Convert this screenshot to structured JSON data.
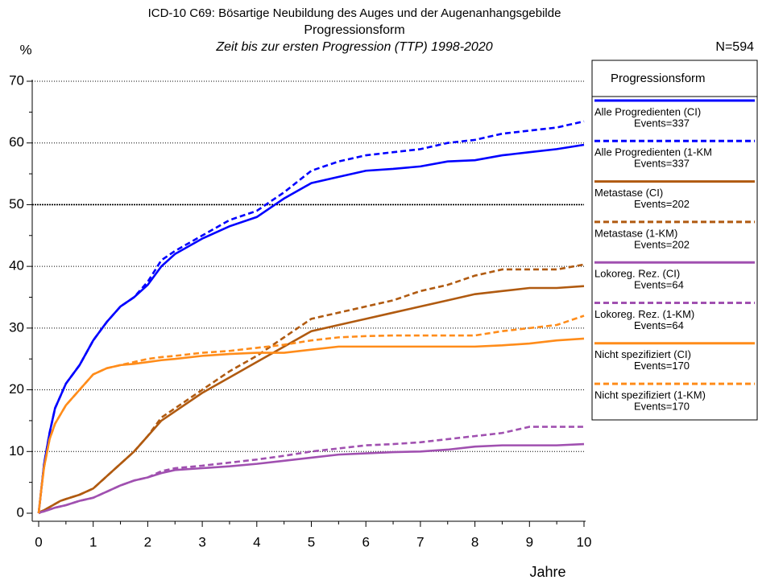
{
  "chart_data": {
    "type": "line",
    "title": "ICD-10 C69: Bösartige Neubildung des Auges und der Augenanhangsgebilde",
    "subtitle": "Progressionsform",
    "subtitle2": "Zeit bis zur ersten Progression (TTP) 1998-2020",
    "y_label": "%",
    "x_label": "Jahre",
    "annotation": "N=594",
    "legend_title": "Progressionsform",
    "grid": true,
    "xlim": [
      0,
      10
    ],
    "xticks": [
      0,
      1,
      2,
      3,
      4,
      5,
      6,
      7,
      8,
      9,
      10
    ],
    "ylim": [
      0,
      70
    ],
    "yticks": [
      0,
      10,
      20,
      30,
      40,
      50,
      60,
      70
    ],
    "x": [
      0,
      0.05,
      0.1,
      0.2,
      0.3,
      0.4,
      0.5,
      0.75,
      1,
      1.25,
      1.5,
      1.75,
      2,
      2.25,
      2.5,
      3,
      3.5,
      4,
      4.5,
      5,
      5.5,
      6,
      6.5,
      7,
      7.5,
      8,
      8.5,
      9,
      9.5,
      10
    ],
    "series": [
      {
        "name": "Alle Progredienten (CI)",
        "events": "Events=337",
        "color": "#0000ff",
        "dashed": false,
        "values": [
          0,
          4,
          8,
          13,
          17,
          19,
          21,
          24,
          28,
          31,
          33.5,
          35,
          37,
          40,
          42,
          44.5,
          46.5,
          48,
          51,
          53.5,
          54.5,
          55.5,
          55.8,
          56.2,
          57,
          57.2,
          58,
          58.5,
          59,
          59.7
        ]
      },
      {
        "name": "Alle Progredienten (1-KM",
        "events": "Events=337",
        "color": "#0000ff",
        "dashed": true,
        "values": [
          0,
          4,
          8,
          13,
          17,
          19,
          21,
          24,
          28,
          31,
          33.5,
          35,
          37.5,
          41,
          42.5,
          45,
          47.5,
          49,
          52,
          55.5,
          57,
          58,
          58.5,
          59,
          60,
          60.5,
          61.5,
          62,
          62.5,
          63.5
        ]
      },
      {
        "name": "Metastase (CI)",
        "events": "Events=202",
        "color": "#b05a10",
        "dashed": false,
        "values": [
          0,
          0.3,
          0.5,
          1,
          1.5,
          2,
          2.3,
          3,
          4,
          6,
          8,
          10,
          12.5,
          15,
          16.5,
          19.5,
          22,
          24.5,
          27,
          29.5,
          30.5,
          31.5,
          32.5,
          33.5,
          34.5,
          35.5,
          36,
          36.5,
          36.5,
          36.8
        ]
      },
      {
        "name": "Metastase (1-KM)",
        "events": "Events=202",
        "color": "#b05a10",
        "dashed": true,
        "values": [
          0,
          0.3,
          0.5,
          1,
          1.5,
          2,
          2.3,
          3,
          4,
          6,
          8,
          10,
          12.5,
          15.5,
          17,
          20,
          23,
          25.5,
          28.5,
          31.5,
          32.5,
          33.5,
          34.5,
          36,
          37,
          38.5,
          39.5,
          39.5,
          39.5,
          40.3
        ]
      },
      {
        "name": "Lokoreg. Rez. (CI)",
        "events": "Events=64",
        "color": "#a050b0",
        "dashed": false,
        "values": [
          0,
          0.2,
          0.3,
          0.6,
          0.9,
          1.1,
          1.3,
          2,
          2.5,
          3.5,
          4.5,
          5.3,
          5.8,
          6.5,
          7,
          7.3,
          7.6,
          8,
          8.5,
          9,
          9.5,
          9.7,
          9.9,
          10,
          10.3,
          10.8,
          11,
          11,
          11,
          11.2
        ]
      },
      {
        "name": "Lokoreg. Rez. (1-KM)",
        "events": "Events=64",
        "color": "#a050b0",
        "dashed": true,
        "values": [
          0,
          0.2,
          0.3,
          0.6,
          0.9,
          1.1,
          1.3,
          2,
          2.5,
          3.5,
          4.5,
          5.3,
          5.8,
          6.8,
          7.3,
          7.7,
          8.2,
          8.7,
          9.3,
          10,
          10.5,
          11,
          11.2,
          11.5,
          12,
          12.5,
          13,
          14,
          14,
          14
        ]
      },
      {
        "name": "Nicht spezifiziert (CI)",
        "events": "Events=170",
        "color": "#ff8c1a",
        "dashed": false,
        "values": [
          0,
          4,
          7.5,
          12,
          14.5,
          16,
          17.5,
          20,
          22.5,
          23.5,
          24,
          24.2,
          24.5,
          24.8,
          25,
          25.5,
          25.8,
          26,
          26,
          26.5,
          27,
          27,
          27,
          27,
          27,
          27,
          27.2,
          27.5,
          28,
          28.3
        ]
      },
      {
        "name": "Nicht spezifiziert (1-KM)",
        "events": "Events=170",
        "color": "#ff8c1a",
        "dashed": true,
        "values": [
          0,
          4,
          7.5,
          12,
          14.5,
          16,
          17.5,
          20,
          22.5,
          23.5,
          24,
          24.5,
          25,
          25.3,
          25.5,
          26,
          26.3,
          26.8,
          27.3,
          28,
          28.5,
          28.7,
          28.8,
          28.8,
          28.8,
          28.8,
          29.5,
          30,
          30.5,
          32
        ]
      }
    ]
  }
}
